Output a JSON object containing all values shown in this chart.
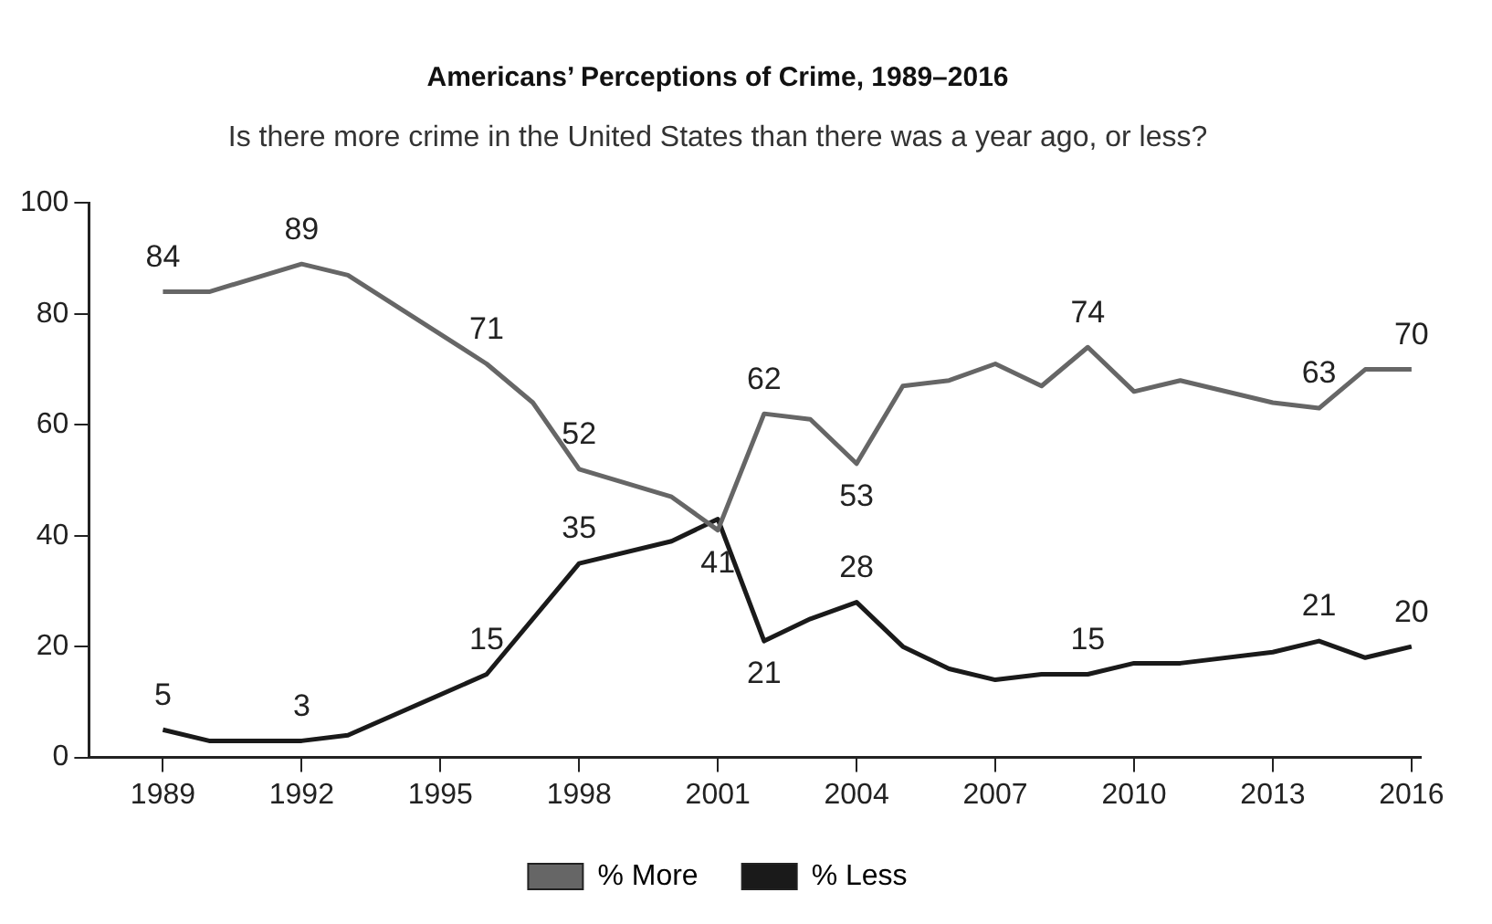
{
  "chart_data": {
    "type": "line",
    "title": "Americans’ Perceptions of Crime, 1989–2016",
    "subtitle": "Is there more crime in the United States than there was a year ago, or less?",
    "xlim": [
      1987.4,
      2016.2
    ],
    "xticks": [
      1989,
      1992,
      1995,
      1998,
      2001,
      2004,
      2007,
      2010,
      2013,
      2016
    ],
    "ylim": [
      0,
      100
    ],
    "yticks": [
      0,
      20,
      40,
      60,
      80,
      100
    ],
    "grid": false,
    "legend": "bottom",
    "marker": "none",
    "line_style": "solid",
    "series": [
      {
        "name": "% More",
        "color": "#666666",
        "x": [
          1989,
          1990,
          1992,
          1993,
          1996,
          1997,
          1998,
          2000,
          2001,
          2002,
          2003,
          2004,
          2005,
          2006,
          2007,
          2008,
          2009,
          2010,
          2011,
          2013,
          2014,
          2015,
          2016
        ],
        "values": [
          84,
          84,
          89,
          87,
          71,
          64,
          52,
          47,
          41,
          62,
          61,
          53,
          67,
          68,
          71,
          67,
          74,
          66,
          68,
          64,
          63,
          70,
          70
        ],
        "value_labels": [
          "84",
          null,
          "89",
          null,
          "71",
          null,
          "52",
          null,
          "41",
          "62",
          null,
          "53",
          null,
          null,
          null,
          null,
          "74",
          null,
          null,
          null,
          "63",
          null,
          "70"
        ]
      },
      {
        "name": "% Less",
        "color": "#1a1a1a",
        "x": [
          1989,
          1990,
          1992,
          1993,
          1996,
          1998,
          2000,
          2001,
          2002,
          2003,
          2004,
          2005,
          2006,
          2007,
          2008,
          2009,
          2010,
          2011,
          2013,
          2014,
          2015,
          2016
        ],
        "values": [
          5,
          3,
          3,
          4,
          15,
          35,
          39,
          43,
          21,
          25,
          28,
          20,
          16,
          14,
          15,
          15,
          17,
          17,
          19,
          21,
          18,
          20
        ],
        "value_labels": [
          "5",
          null,
          "3",
          null,
          "15",
          "35",
          null,
          null,
          "21",
          null,
          "28",
          null,
          null,
          null,
          null,
          "15",
          null,
          null,
          null,
          "21",
          null,
          "20"
        ]
      }
    ]
  }
}
